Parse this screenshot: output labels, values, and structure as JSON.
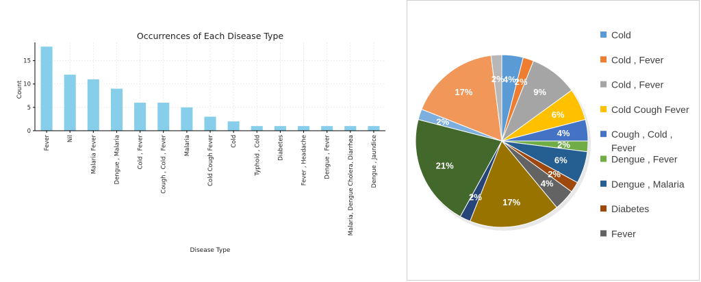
{
  "chart_data": [
    {
      "type": "bar",
      "title": "Occurrences of Each Disease Type",
      "xlabel": "Disease Type",
      "ylabel": "Count",
      "ylim": [
        0,
        18.9
      ],
      "yticks": [
        0,
        5,
        10,
        15
      ],
      "grid": true,
      "bar_color": "#87ceeb",
      "categories": [
        "Fever",
        "Nil",
        "Malaria Fever",
        "Dengue , Malaria",
        "Cold , Fever",
        "Cough , Cold , Fever",
        "Malaria",
        "Cold Cough Fever",
        "Cold",
        "Typhoid , Cold",
        "Diabetes",
        "Fever , Headache",
        "Dengue , Fever",
        "Malaria, Dengue Cholera, Diarrhea",
        "Dengue , Jaundice"
      ],
      "values": [
        18,
        12,
        11,
        9,
        6,
        6,
        5,
        3,
        2,
        1,
        1,
        1,
        1,
        1,
        1
      ]
    },
    {
      "type": "pie",
      "legend_position": "right",
      "slices": [
        {
          "label": "Cold",
          "value": 4,
          "display": "4%",
          "color": "#5b9bd5"
        },
        {
          "label": "Cold ,  Fever",
          "value": 2,
          "display": "2%",
          "color": "#ed7d31"
        },
        {
          "label": "Cold , Fever",
          "value": 9,
          "display": "9%",
          "color": "#a5a5a5"
        },
        {
          "label": "Cold Cough Fever",
          "value": 6,
          "display": "6%",
          "color": "#ffc000"
        },
        {
          "label": "Cough , Cold , Fever",
          "value": 4,
          "display": "4%",
          "color": "#4472c4"
        },
        {
          "label": "Dengue , Fever",
          "value": 2,
          "display": "2%",
          "color": "#70ad47"
        },
        {
          "label": "Dengue , Malaria",
          "value": 6,
          "display": "6%",
          "color": "#255e91"
        },
        {
          "label": "Diabetes",
          "value": 2,
          "display": "2%",
          "color": "#9e480e"
        },
        {
          "label": "Fever",
          "value": 4,
          "display": "4%",
          "color": "#636363"
        },
        {
          "label": "",
          "value": 17,
          "display": "17%",
          "color": "#997300"
        },
        {
          "label": "",
          "value": 2,
          "display": "2%",
          "color": "#264478"
        },
        {
          "label": "",
          "value": 21,
          "display": "21%",
          "color": "#43682b"
        },
        {
          "label": "",
          "value": 2,
          "display": "2%",
          "color": "#7cafdd"
        },
        {
          "label": "",
          "value": 17,
          "display": "17%",
          "color": "#f1975a"
        },
        {
          "label": "",
          "value": 2,
          "display": "2%",
          "color": "#b7b7b7"
        }
      ]
    }
  ]
}
